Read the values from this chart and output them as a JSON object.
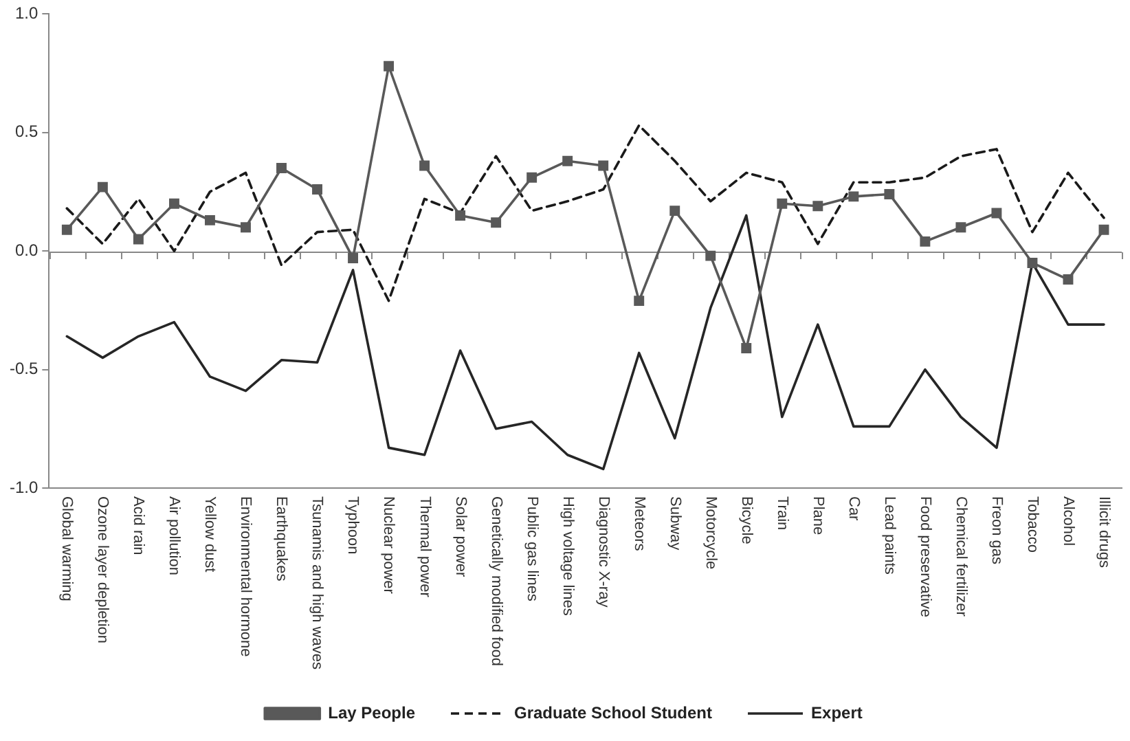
{
  "chart_data": {
    "type": "line",
    "categories": [
      "Global warming",
      "Ozone layer depletion",
      "Acid rain",
      "Air pollution",
      "Yellow dust",
      "Environmental hormone",
      "Earthquakes",
      "Tsunamis and high waves",
      "Typhoon",
      "Nuclear power",
      "Thermal power",
      "Solar power",
      "Genetically modified food",
      "Public gas lines",
      "High voltage lines",
      "Diagnostic X-ray",
      "Meteors",
      "Subway",
      "Motorcycle",
      "Bicycle",
      "Train",
      "Plane",
      "Car",
      "Lead paints",
      "Food preservative",
      "Chemical fertilizer",
      "Freon gas",
      "Tobacco",
      "Alcohol",
      "Illicit drugs"
    ],
    "series": [
      {
        "name": "Lay People",
        "color": "#595959",
        "marker": "square",
        "line_style": "solid",
        "values": [
          0.09,
          0.27,
          0.05,
          0.2,
          0.13,
          0.1,
          0.35,
          0.26,
          -0.03,
          0.78,
          0.36,
          0.15,
          0.12,
          0.31,
          0.38,
          0.36,
          -0.21,
          0.17,
          -0.02,
          -0.41,
          0.2,
          0.19,
          0.23,
          0.24,
          0.04,
          0.1,
          0.16,
          -0.05,
          -0.12,
          0.09
        ]
      },
      {
        "name": "Graduate School Student",
        "color": "#1a1a1a",
        "marker": "none",
        "line_style": "dashed",
        "values": [
          0.18,
          0.03,
          0.22,
          0.0,
          0.25,
          0.33,
          -0.06,
          0.08,
          0.09,
          -0.21,
          0.22,
          0.16,
          0.4,
          0.17,
          0.21,
          0.26,
          0.53,
          0.38,
          0.21,
          0.33,
          0.29,
          0.03,
          0.29,
          0.29,
          0.31,
          0.4,
          0.43,
          0.08,
          0.33,
          0.14
        ]
      },
      {
        "name": "Expert",
        "color": "#262626",
        "marker": "none",
        "line_style": "solid",
        "values": [
          -0.36,
          -0.45,
          -0.36,
          -0.3,
          -0.53,
          -0.59,
          -0.46,
          -0.47,
          -0.08,
          -0.83,
          -0.86,
          -0.42,
          -0.75,
          -0.72,
          -0.86,
          -0.92,
          -0.43,
          -0.79,
          -0.24,
          0.15,
          -0.7,
          -0.31,
          -0.74,
          -0.74,
          -0.5,
          -0.7,
          -0.83,
          -0.05,
          -0.31,
          -0.31
        ]
      }
    ],
    "ylim": [
      -1,
      1
    ],
    "yticks": [
      {
        "value": -1,
        "label": "-1.0"
      },
      {
        "value": -0.5,
        "label": "-0.5"
      },
      {
        "value": 0,
        "label": "0.0"
      },
      {
        "value": 0.5,
        "label": "0.5"
      },
      {
        "value": 1,
        "label": "1.0"
      }
    ],
    "grid": false,
    "ref_lines": [
      {
        "axis": "y",
        "value": 0,
        "color": "#888888"
      }
    ],
    "legend": "bottom"
  }
}
